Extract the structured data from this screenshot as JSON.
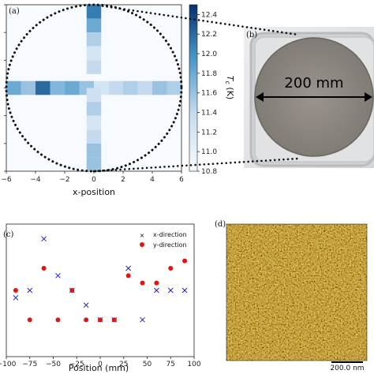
{
  "panels": {
    "a": "(a)",
    "b": "(b)",
    "c": "(c)",
    "d": "(d)"
  },
  "photo": {
    "annotation": "200 mm",
    "colors": {
      "frame": "#b9bbbd",
      "wafer": "#8d8780",
      "background": "#e7e8ea"
    }
  },
  "afm": {
    "scalebar": "200.0 nm",
    "colors": {
      "dark": "#6e3208",
      "mid": "#b3620e",
      "light": "#f2c25a"
    }
  },
  "chart_data": [
    {
      "id": "heatmap",
      "type": "heatmap",
      "xlabel": "x-position",
      "xlim": [
        -6,
        6
      ],
      "ylim": [
        -6,
        6
      ],
      "xticks": [
        "−6",
        "−4",
        "−2",
        "0",
        "2",
        "4",
        "6"
      ],
      "colorbar": {
        "label_main": "T",
        "label_sub": "c",
        "label_unit": " (K)",
        "range": [
          10.8,
          12.5
        ],
        "ticks": [
          "10.8",
          "11.0",
          "11.2",
          "11.4",
          "11.6",
          "11.8",
          "12.0",
          "12.2",
          "12.4"
        ],
        "tick_values": [
          10.8,
          11.0,
          11.2,
          11.4,
          11.6,
          11.8,
          12.0,
          12.2,
          12.4
        ],
        "colors": {
          "low": "#f7fbff",
          "high": "#08306b"
        }
      },
      "cell_size": 1,
      "horizontal_row": {
        "y": 0,
        "x": [
          -6,
          -5,
          -4,
          -3,
          -2,
          -1,
          0,
          1,
          2,
          3,
          4,
          5
        ],
        "tc": [
          11.8,
          11.6,
          12.2,
          11.7,
          11.8,
          11.6,
          11.2,
          11.4,
          11.5,
          11.4,
          11.6,
          11.5
        ]
      },
      "vertical_column": {
        "x": 0,
        "y": [
          5,
          4,
          3,
          2,
          1,
          -1,
          -2,
          -3,
          -4,
          -5,
          -6
        ],
        "tc": [
          12.1,
          11.8,
          11.5,
          11.2,
          11.4,
          11.3,
          11.5,
          11.2,
          11.4,
          11.6,
          11.6
        ]
      },
      "dotted_circle": {
        "center": [
          0,
          0
        ],
        "radius": 6
      }
    },
    {
      "id": "scatter",
      "type": "scatter",
      "xlabel": "Position (mm)",
      "xlim": [
        -100,
        100
      ],
      "ylim": [
        10.6,
        12.4
      ],
      "xticks": [
        -100,
        -75,
        -50,
        -25,
        0,
        25,
        50,
        75,
        100
      ],
      "series": [
        {
          "name": "x-direction",
          "marker": "x",
          "color": "#1f1fbf",
          "x": [
            -90,
            -75,
            -60,
            -45,
            -30,
            -15,
            0,
            15,
            30,
            45,
            60,
            75,
            90
          ],
          "y": [
            11.4,
            11.5,
            12.2,
            11.7,
            11.5,
            11.3,
            11.1,
            11.1,
            11.8,
            11.1,
            11.5,
            11.5,
            11.5
          ]
        },
        {
          "name": "y-direction",
          "marker": "o",
          "color": "#e01414",
          "x": [
            -90,
            -75,
            -60,
            -45,
            -30,
            -15,
            0,
            15,
            30,
            45,
            60,
            75,
            90
          ],
          "y": [
            11.5,
            11.1,
            11.8,
            11.1,
            11.5,
            11.1,
            11.1,
            11.1,
            11.7,
            11.6,
            11.6,
            11.8,
            11.9
          ]
        }
      ]
    }
  ]
}
